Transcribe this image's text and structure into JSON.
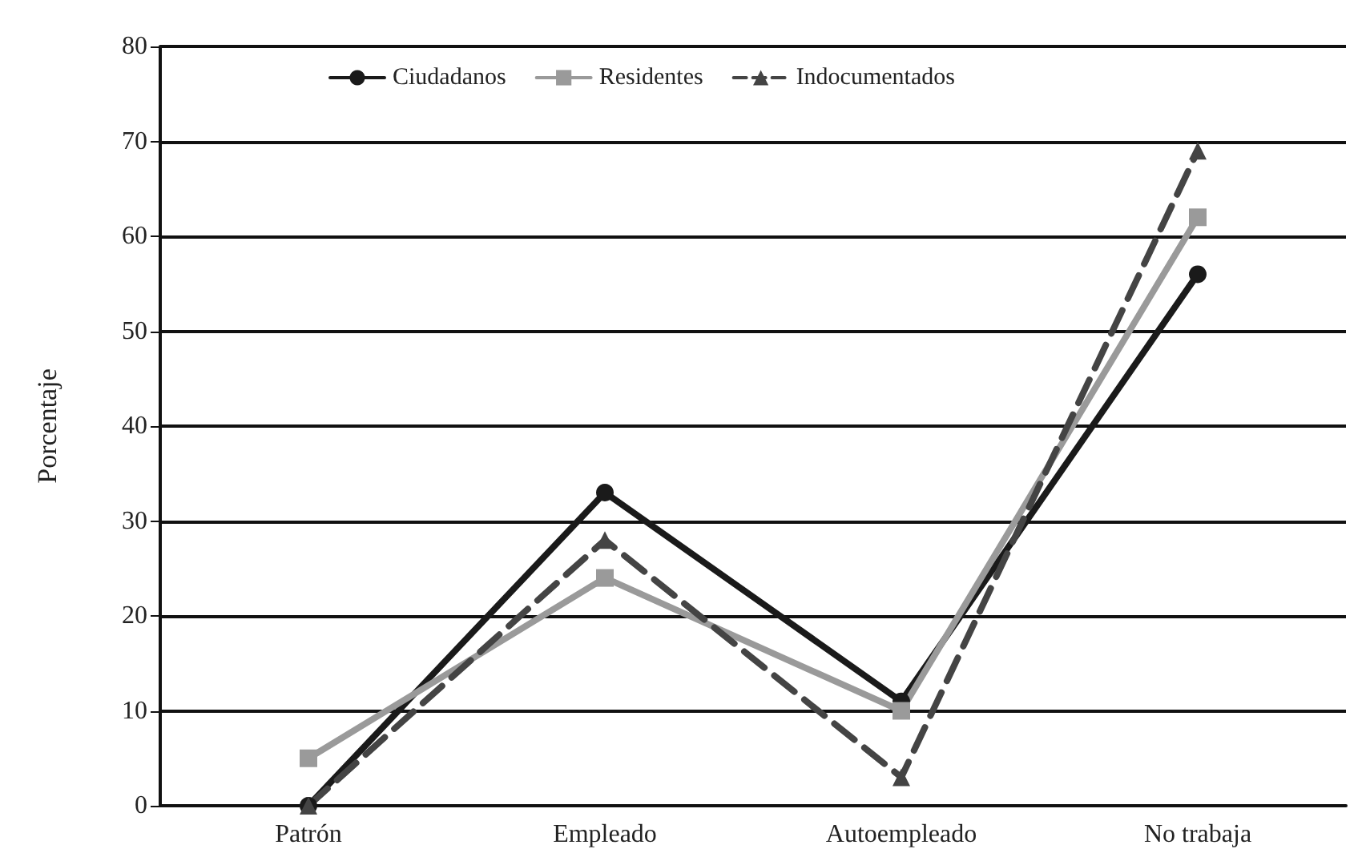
{
  "chart_data": {
    "type": "line",
    "ylabel": "Porcentaje",
    "categories": [
      "Patrón",
      "Empleado",
      "Autoempleado",
      "No trabaja"
    ],
    "series": [
      {
        "name": "Ciudadanos",
        "color": "#1a1a1a",
        "marker": "circle",
        "line_style": "solid",
        "values": [
          0,
          33,
          11,
          56
        ]
      },
      {
        "name": "Residentes",
        "color": "#9a9a9a",
        "marker": "square",
        "line_style": "solid",
        "values": [
          5,
          24,
          10,
          62
        ]
      },
      {
        "name": "Indocumentados",
        "color": "#444444",
        "marker": "triangle",
        "line_style": "dashed",
        "values": [
          0,
          28,
          3,
          69
        ]
      }
    ],
    "ylim": [
      0,
      80
    ],
    "yticks": [
      0,
      10,
      20,
      30,
      40,
      50,
      60,
      70,
      80
    ],
    "grid": "y",
    "legend": "top"
  }
}
